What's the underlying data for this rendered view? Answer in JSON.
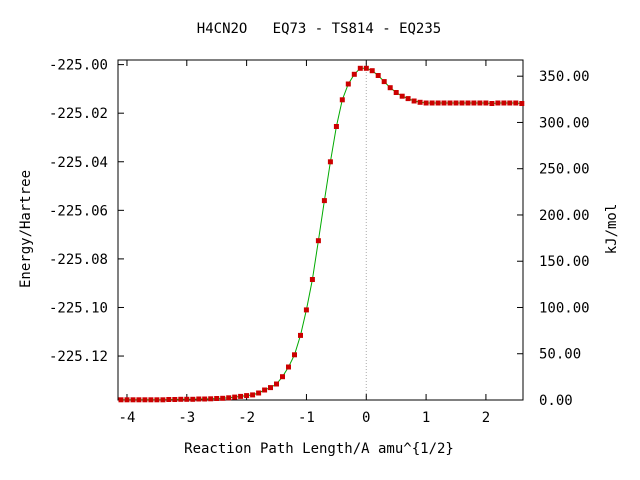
{
  "chart_data": {
    "type": "line",
    "title": "H4CN2O   EQ73 - TS814 - EQ235",
    "xlabel": "Reaction Path Length/A amu^{1/2}",
    "ylabel": "Energy/Hartree",
    "y2label": "kJ/mol",
    "xlim": [
      -4.15,
      2.62
    ],
    "ylim": [
      -225.1381,
      -224.9981
    ],
    "y2lim": [
      0,
      367.5
    ],
    "x_ticks": [
      -4,
      -3,
      -2,
      -1,
      0,
      1,
      2
    ],
    "x_tick_labels": [
      "-4",
      "-3",
      "-2",
      "-1",
      "0",
      "1",
      "2"
    ],
    "y_ticks": [
      -225.0,
      -225.02,
      -225.04,
      -225.06,
      -225.08,
      -225.1,
      -225.12
    ],
    "y_tick_labels": [
      "-225.00",
      "-225.02",
      "-225.04",
      "-225.06",
      "-225.08",
      "-225.10",
      "-225.12"
    ],
    "y2_ticks": [
      0,
      50,
      100,
      150,
      200,
      250,
      300,
      350
    ],
    "y2_tick_labels": [
      "0.00",
      "50.00",
      "100.00",
      "150.00",
      "200.00",
      "250.00",
      "300.00",
      "350.00"
    ],
    "ts_marker_x": 0,
    "grid": false,
    "colors": {
      "line": "#00aa00",
      "marker": "#cc0000",
      "ts_line": "#aaaaaa"
    },
    "series": [
      {
        "x": [
          -4.1,
          -4.0,
          -3.9,
          -3.8,
          -3.7,
          -3.6,
          -3.5,
          -3.4,
          -3.3,
          -3.2,
          -3.1,
          -3.0,
          -2.9,
          -2.8,
          -2.7,
          -2.6,
          -2.5,
          -2.4,
          -2.3,
          -2.2,
          -2.1,
          -2.0,
          -1.9,
          -1.8,
          -1.7,
          -1.6,
          -1.5,
          -1.4,
          -1.3,
          -1.2,
          -1.1,
          -1.0,
          -0.9,
          -0.8,
          -0.7,
          -0.6,
          -0.5,
          -0.4,
          -0.3,
          -0.2,
          -0.1,
          0.0,
          0.1,
          0.2,
          0.3,
          0.4,
          0.5,
          0.6,
          0.7,
          0.8,
          0.9,
          1.0,
          1.1,
          1.2,
          1.3,
          1.4,
          1.5,
          1.6,
          1.7,
          1.8,
          1.9,
          2.0,
          2.1,
          2.2,
          2.3,
          2.4,
          2.5,
          2.6
        ],
        "y": [
          -225.138,
          -225.138,
          -225.138,
          -225.138,
          -225.138,
          -225.138,
          -225.138,
          -225.138,
          -225.1379,
          -225.1379,
          -225.1378,
          -225.1378,
          -225.1378,
          -225.1377,
          -225.1377,
          -225.1376,
          -225.1375,
          -225.1374,
          -225.1372,
          -225.1369,
          -225.1366,
          -225.1363,
          -225.136,
          -225.1352,
          -225.134,
          -225.133,
          -225.1315,
          -225.1285,
          -225.1245,
          -225.1195,
          -225.1115,
          -225.101,
          -225.0885,
          -225.0725,
          -225.056,
          -225.04,
          -225.0255,
          -225.0145,
          -225.008,
          -225.004,
          -225.0015,
          -225.0015,
          -225.0025,
          -225.0045,
          -225.007,
          -225.0095,
          -225.0115,
          -225.013,
          -225.014,
          -225.015,
          -225.0155,
          -225.0158,
          -225.0158,
          -225.0158,
          -225.0158,
          -225.0158,
          -225.0158,
          -225.0158,
          -225.0158,
          -225.0158,
          -225.0158,
          -225.0158,
          -225.016,
          -225.0158,
          -225.0158,
          -225.0158,
          -225.0158,
          -225.016
        ]
      }
    ]
  }
}
